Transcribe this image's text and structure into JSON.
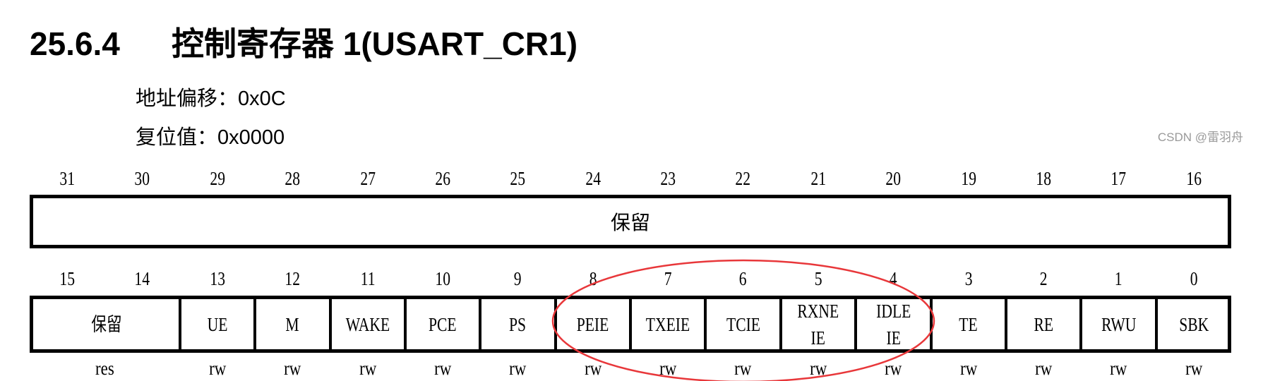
{
  "section": {
    "number": "25.6.4",
    "title": "控制寄存器 1(USART_CR1)"
  },
  "address_offset": "地址偏移：0x0C",
  "reset_value": "复位值：0x0000",
  "upper": {
    "bits": [
      "31",
      "30",
      "29",
      "28",
      "27",
      "26",
      "25",
      "24",
      "23",
      "22",
      "21",
      "20",
      "19",
      "18",
      "17",
      "16"
    ],
    "field": "保留"
  },
  "lower": {
    "bits": [
      "15",
      "14",
      "13",
      "12",
      "11",
      "10",
      "9",
      "8",
      "7",
      "6",
      "5",
      "4",
      "3",
      "2",
      "1",
      "0"
    ],
    "fields": [
      {
        "label": "保留",
        "span": 2,
        "access": "res"
      },
      {
        "label": "UE",
        "span": 1,
        "access": "rw"
      },
      {
        "label": "M",
        "span": 1,
        "access": "rw"
      },
      {
        "label": "WAKE",
        "span": 1,
        "access": "rw"
      },
      {
        "label": "PCE",
        "span": 1,
        "access": "rw"
      },
      {
        "label": "PS",
        "span": 1,
        "access": "rw"
      },
      {
        "label": "PEIE",
        "span": 1,
        "access": "rw"
      },
      {
        "label": "TXEIE",
        "span": 1,
        "access": "rw"
      },
      {
        "label": "TCIE",
        "span": 1,
        "access": "rw"
      },
      {
        "label": "RXNE\nIE",
        "span": 1,
        "access": "rw"
      },
      {
        "label": "IDLE\nIE",
        "span": 1,
        "access": "rw"
      },
      {
        "label": "TE",
        "span": 1,
        "access": "rw"
      },
      {
        "label": "RE",
        "span": 1,
        "access": "rw"
      },
      {
        "label": "RWU",
        "span": 1,
        "access": "rw"
      },
      {
        "label": "SBK",
        "span": 1,
        "access": "rw"
      }
    ]
  },
  "highlight_color": "#e8373a",
  "highlighted_fields": [
    "PEIE",
    "TXEIE",
    "TCIE",
    "RXNEIE",
    "IDLEIE"
  ],
  "watermark": "CSDN @雷羽舟"
}
